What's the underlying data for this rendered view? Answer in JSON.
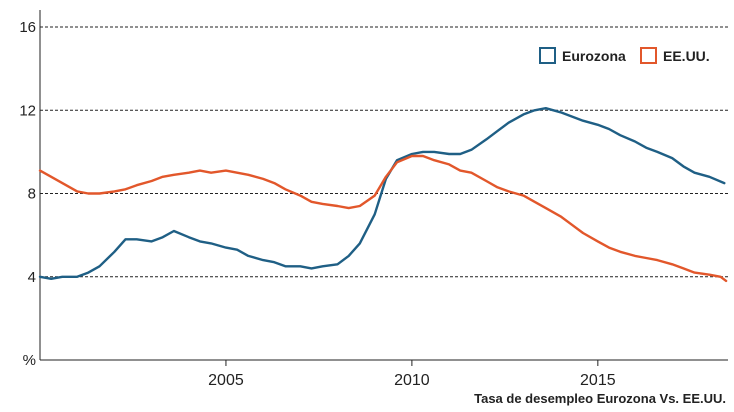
{
  "chart_data": {
    "type": "line",
    "title": "",
    "caption": "Tasa de desempleo Eurozona Vs. EE.UU.",
    "xlabel": "",
    "ylabel": "%",
    "xlim": [
      2000.0,
      2018.5
    ],
    "ylim": [
      0,
      16
    ],
    "y_ticks": [
      {
        "value": 0,
        "label": "%"
      },
      {
        "value": 4,
        "label": "4"
      },
      {
        "value": 8,
        "label": "8"
      },
      {
        "value": 12,
        "label": "12"
      },
      {
        "value": 16,
        "label": "16"
      }
    ],
    "x_ticks": [
      {
        "value": 2005,
        "label": "2005"
      },
      {
        "value": 2010,
        "label": "2010"
      },
      {
        "value": 2015,
        "label": "2015"
      }
    ],
    "grid": true,
    "legend_position": "top-right",
    "series": [
      {
        "name": "Eurozona",
        "color": "#1f5f85",
        "points": [
          [
            2000.0,
            4.0
          ],
          [
            2000.3,
            3.9
          ],
          [
            2000.6,
            4.0
          ],
          [
            2001.0,
            4.0
          ],
          [
            2001.3,
            4.2
          ],
          [
            2001.6,
            4.5
          ],
          [
            2002.0,
            5.2
          ],
          [
            2002.3,
            5.8
          ],
          [
            2002.6,
            5.8
          ],
          [
            2003.0,
            5.7
          ],
          [
            2003.3,
            5.9
          ],
          [
            2003.6,
            6.2
          ],
          [
            2004.0,
            5.9
          ],
          [
            2004.3,
            5.7
          ],
          [
            2004.6,
            5.6
          ],
          [
            2005.0,
            5.4
          ],
          [
            2005.3,
            5.3
          ],
          [
            2005.6,
            5.0
          ],
          [
            2006.0,
            4.8
          ],
          [
            2006.3,
            4.7
          ],
          [
            2006.6,
            4.5
          ],
          [
            2007.0,
            4.5
          ],
          [
            2007.3,
            4.4
          ],
          [
            2007.6,
            4.5
          ],
          [
            2008.0,
            4.6
          ],
          [
            2008.3,
            5.0
          ],
          [
            2008.6,
            5.6
          ],
          [
            2009.0,
            7.0
          ],
          [
            2009.3,
            8.7
          ],
          [
            2009.6,
            9.6
          ],
          [
            2010.0,
            9.9
          ],
          [
            2010.3,
            10.0
          ],
          [
            2010.6,
            10.0
          ],
          [
            2011.0,
            9.9
          ],
          [
            2011.3,
            9.9
          ],
          [
            2011.6,
            10.1
          ],
          [
            2012.0,
            10.6
          ],
          [
            2012.3,
            11.0
          ],
          [
            2012.6,
            11.4
          ],
          [
            2013.0,
            11.8
          ],
          [
            2013.3,
            12.0
          ],
          [
            2013.6,
            12.1
          ],
          [
            2014.0,
            11.9
          ],
          [
            2014.3,
            11.7
          ],
          [
            2014.6,
            11.5
          ],
          [
            2015.0,
            11.3
          ],
          [
            2015.3,
            11.1
          ],
          [
            2015.6,
            10.8
          ],
          [
            2016.0,
            10.5
          ],
          [
            2016.3,
            10.2
          ],
          [
            2016.6,
            10.0
          ],
          [
            2017.0,
            9.7
          ],
          [
            2017.3,
            9.3
          ],
          [
            2017.6,
            9.0
          ],
          [
            2018.0,
            8.8
          ],
          [
            2018.4,
            8.5
          ]
        ]
      },
      {
        "name": "EE.UU.",
        "color": "#e2572b",
        "points": [
          [
            2000.0,
            9.1
          ],
          [
            2000.3,
            8.8
          ],
          [
            2000.6,
            8.5
          ],
          [
            2001.0,
            8.1
          ],
          [
            2001.3,
            8.0
          ],
          [
            2001.6,
            8.0
          ],
          [
            2002.0,
            8.1
          ],
          [
            2002.3,
            8.2
          ],
          [
            2002.6,
            8.4
          ],
          [
            2003.0,
            8.6
          ],
          [
            2003.3,
            8.8
          ],
          [
            2003.6,
            8.9
          ],
          [
            2004.0,
            9.0
          ],
          [
            2004.3,
            9.1
          ],
          [
            2004.6,
            9.0
          ],
          [
            2005.0,
            9.1
          ],
          [
            2005.3,
            9.0
          ],
          [
            2005.6,
            8.9
          ],
          [
            2006.0,
            8.7
          ],
          [
            2006.3,
            8.5
          ],
          [
            2006.6,
            8.2
          ],
          [
            2007.0,
            7.9
          ],
          [
            2007.3,
            7.6
          ],
          [
            2007.6,
            7.5
          ],
          [
            2008.0,
            7.4
          ],
          [
            2008.3,
            7.3
          ],
          [
            2008.6,
            7.4
          ],
          [
            2009.0,
            7.9
          ],
          [
            2009.3,
            8.8
          ],
          [
            2009.6,
            9.5
          ],
          [
            2010.0,
            9.8
          ],
          [
            2010.3,
            9.8
          ],
          [
            2010.6,
            9.6
          ],
          [
            2011.0,
            9.4
          ],
          [
            2011.3,
            9.1
          ],
          [
            2011.6,
            9.0
          ],
          [
            2012.0,
            8.6
          ],
          [
            2012.3,
            8.3
          ],
          [
            2012.6,
            8.1
          ],
          [
            2013.0,
            7.9
          ],
          [
            2013.3,
            7.6
          ],
          [
            2013.6,
            7.3
          ],
          [
            2014.0,
            6.9
          ],
          [
            2014.3,
            6.5
          ],
          [
            2014.6,
            6.1
          ],
          [
            2015.0,
            5.7
          ],
          [
            2015.3,
            5.4
          ],
          [
            2015.6,
            5.2
          ],
          [
            2016.0,
            5.0
          ],
          [
            2016.3,
            4.9
          ],
          [
            2016.6,
            4.8
          ],
          [
            2017.0,
            4.6
          ],
          [
            2017.3,
            4.4
          ],
          [
            2017.6,
            4.2
          ],
          [
            2018.0,
            4.1
          ],
          [
            2018.3,
            4.0
          ],
          [
            2018.45,
            3.8
          ]
        ]
      }
    ]
  }
}
